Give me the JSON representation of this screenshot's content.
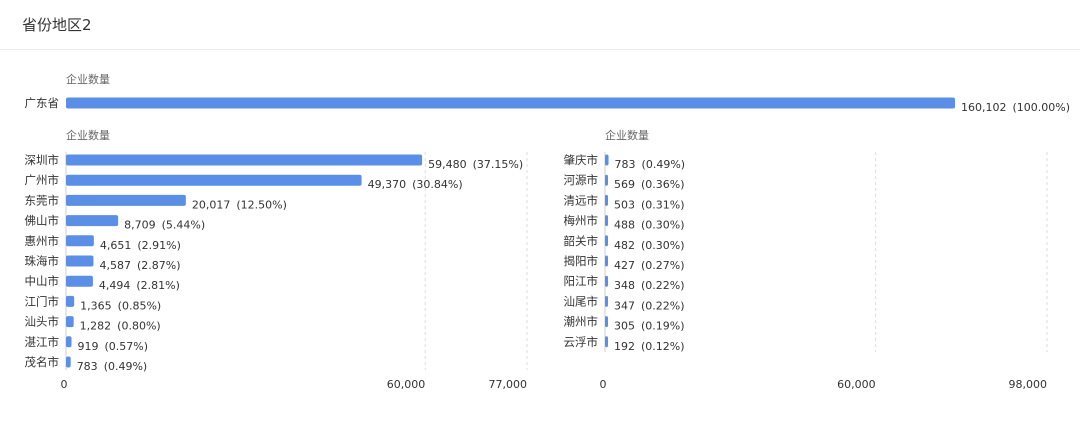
{
  "page_title": "省份地区2",
  "chart_data": [
    {
      "type": "bar",
      "orientation": "horizontal",
      "measure_label": "企业数量",
      "categories": [
        "广东省"
      ],
      "values": [
        160102
      ],
      "value_labels": [
        "160,102"
      ],
      "percent_labels": [
        "(100.00%)"
      ],
      "bar_color": "#5b8ee6",
      "grid": false
    },
    {
      "type": "bar",
      "orientation": "horizontal",
      "measure_label": "企业数量",
      "categories": [
        "深圳市",
        "广州市",
        "东莞市",
        "佛山市",
        "惠州市",
        "珠海市",
        "中山市",
        "江门市",
        "汕头市",
        "湛江市",
        "茂名市"
      ],
      "values": [
        59480,
        49370,
        20017,
        8709,
        4651,
        4587,
        4494,
        1365,
        1282,
        919,
        783
      ],
      "value_labels": [
        "59,480",
        "49,370",
        "20,017",
        "8,709",
        "4,651",
        "4,587",
        "4,494",
        "1,365",
        "1,282",
        "919",
        "783"
      ],
      "percent_labels": [
        "(37.15%)",
        "(30.84%)",
        "(12.50%)",
        "(5.44%)",
        "(2.91%)",
        "(2.87%)",
        "(2.81%)",
        "(0.85%)",
        "(0.80%)",
        "(0.57%)",
        "(0.49%)"
      ],
      "xlim": [
        0,
        77000
      ],
      "ticks": [
        0,
        60000,
        77000
      ],
      "tick_labels": [
        "0",
        "60,000",
        "77,000"
      ],
      "bar_color": "#5b8ee6",
      "grid": true
    },
    {
      "type": "bar",
      "orientation": "horizontal",
      "measure_label": "企业数量",
      "categories": [
        "肇庆市",
        "河源市",
        "清远市",
        "梅州市",
        "韶关市",
        "揭阳市",
        "阳江市",
        "汕尾市",
        "潮州市",
        "云浮市"
      ],
      "values": [
        783,
        569,
        503,
        488,
        482,
        427,
        348,
        347,
        305,
        192
      ],
      "value_labels": [
        "783",
        "569",
        "503",
        "488",
        "482",
        "427",
        "348",
        "347",
        "305",
        "192"
      ],
      "percent_labels": [
        "(0.49%)",
        "(0.36%)",
        "(0.31%)",
        "(0.30%)",
        "(0.30%)",
        "(0.27%)",
        "(0.22%)",
        "(0.22%)",
        "(0.19%)",
        "(0.12%)"
      ],
      "xlim": [
        0,
        98000
      ],
      "ticks": [
        0,
        60000,
        98000
      ],
      "tick_labels": [
        "0",
        "60,000",
        "98,000"
      ],
      "bar_color": "#5b8ee6",
      "grid": true
    }
  ]
}
